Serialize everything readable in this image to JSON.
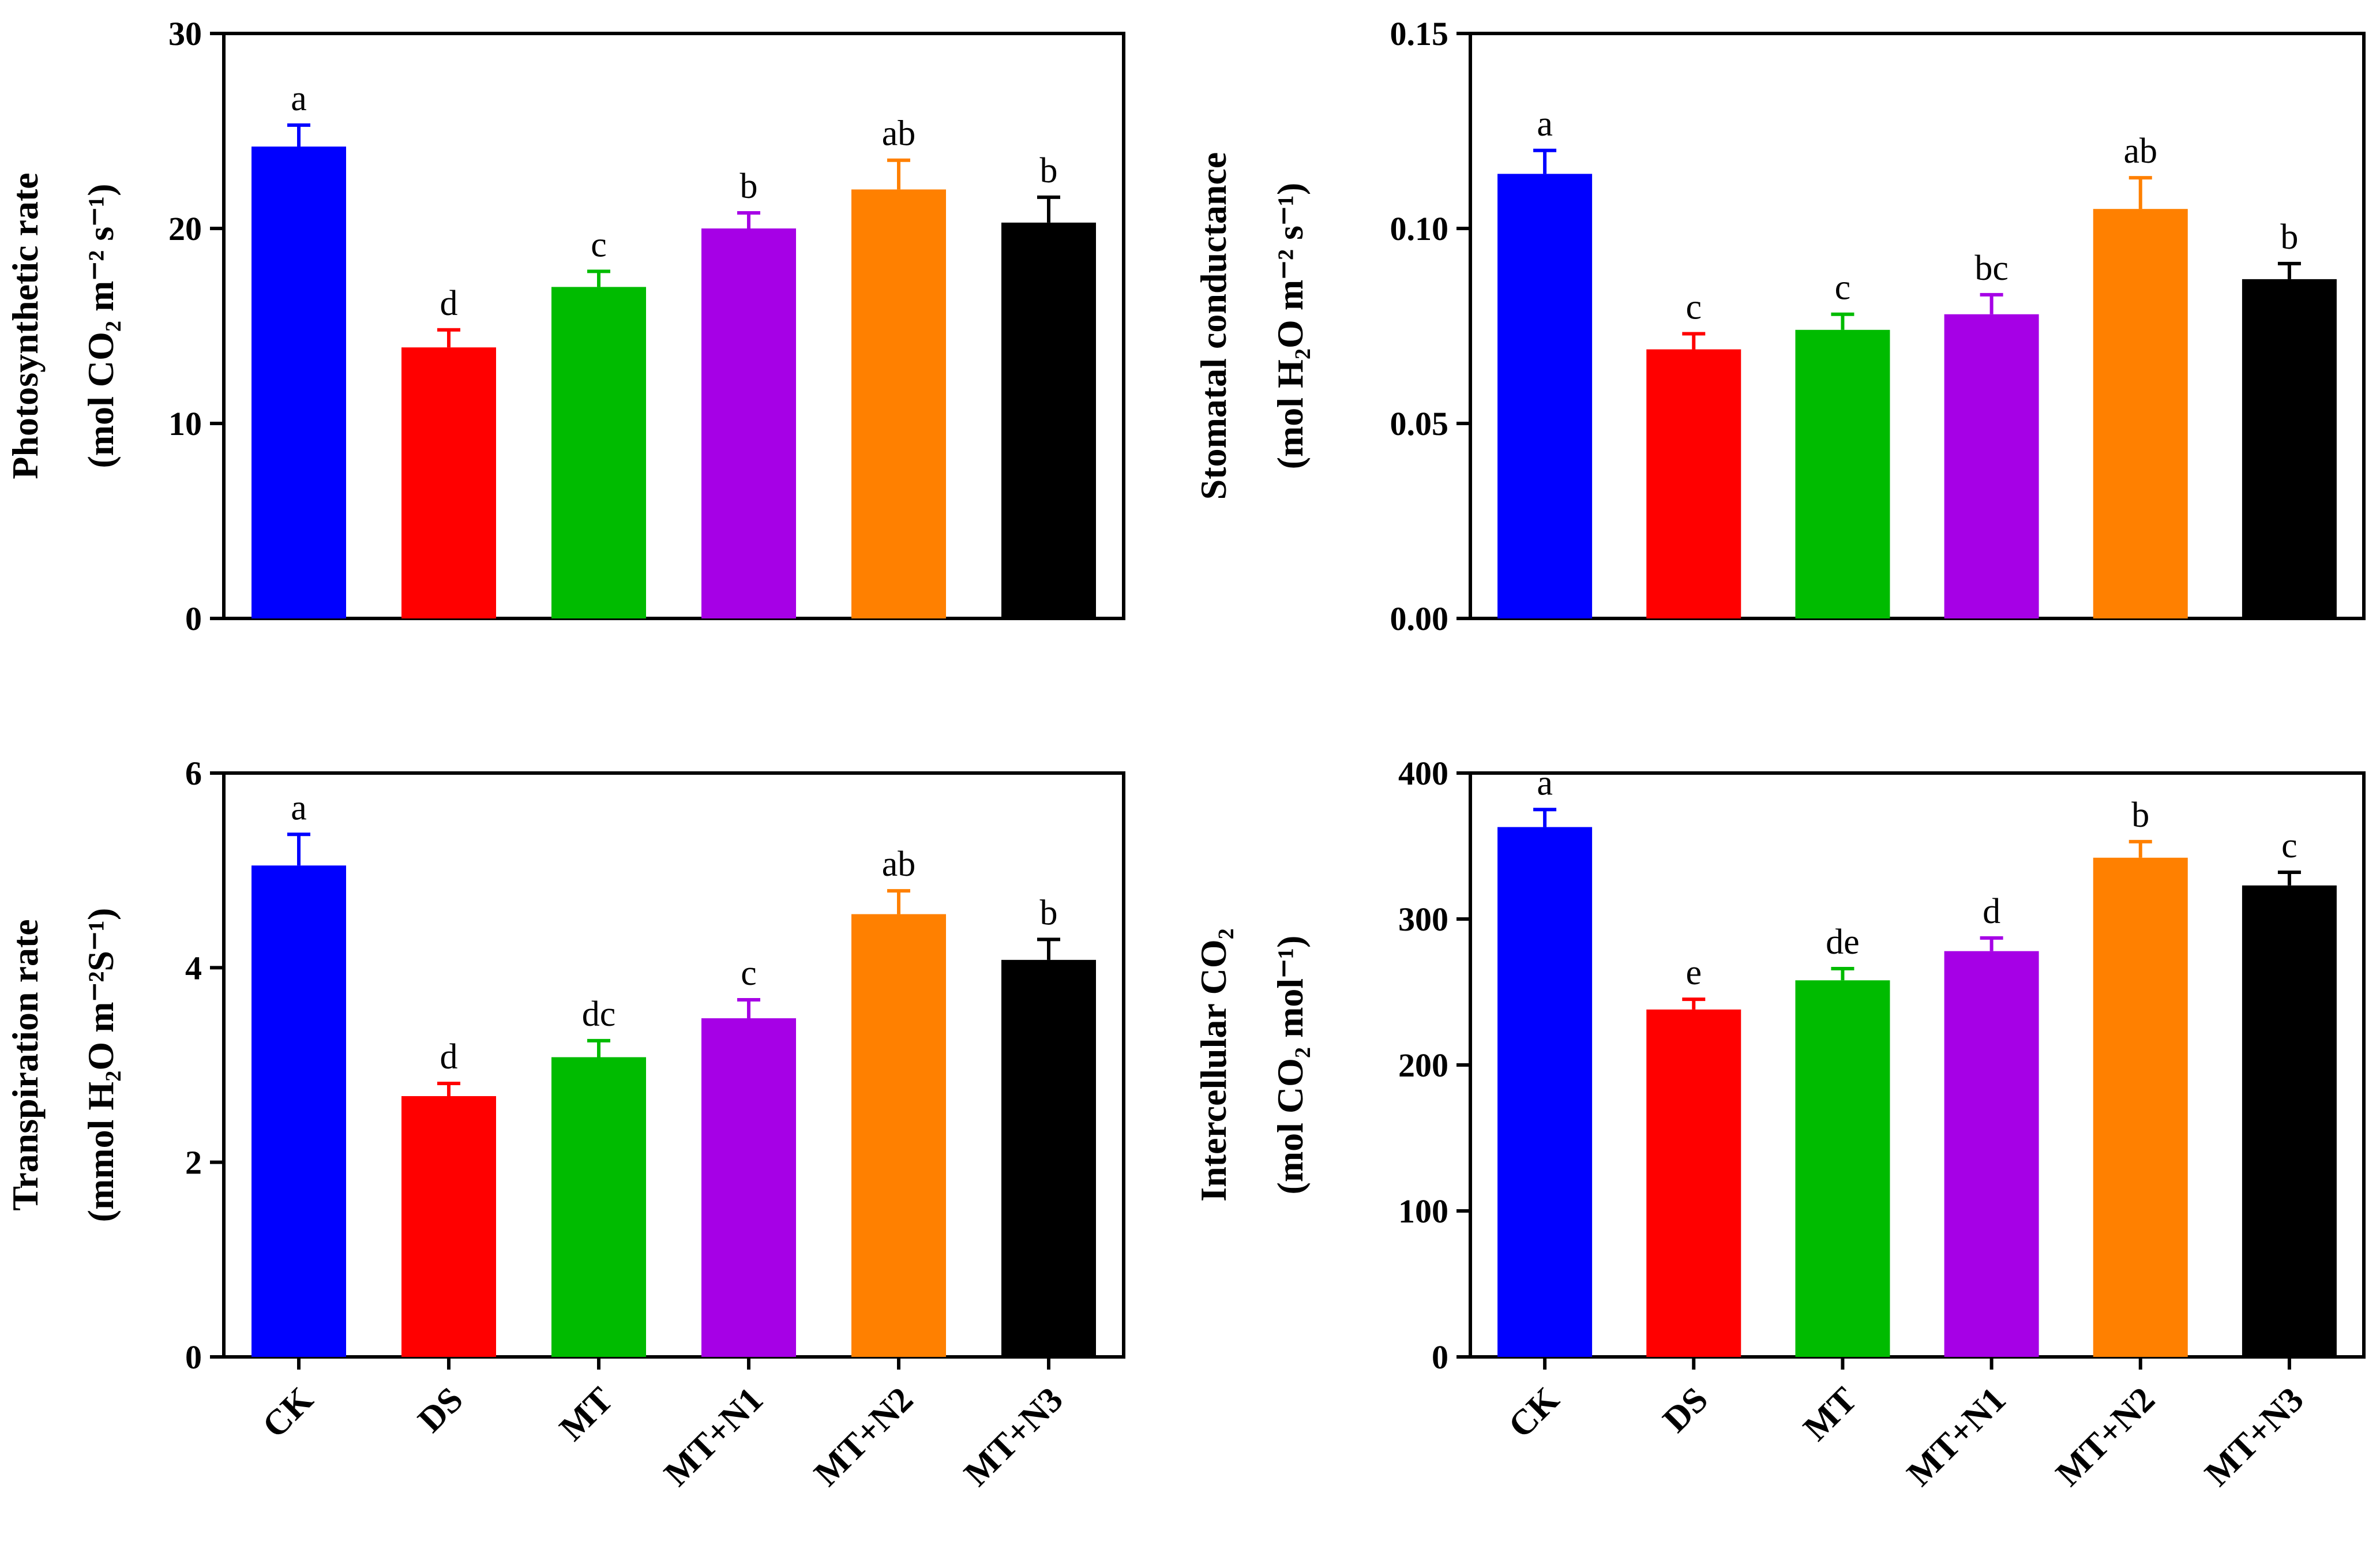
{
  "chart_data": [
    {
      "type": "bar",
      "categories": [
        "CK",
        "DS",
        "MT",
        "MT+N1",
        "MT+N2",
        "MT+N3"
      ],
      "values": [
        24.2,
        13.9,
        17.0,
        20.0,
        22.0,
        20.3
      ],
      "errors": [
        1.1,
        0.9,
        0.8,
        0.8,
        1.5,
        1.3
      ],
      "letters": [
        "a",
        "d",
        "c",
        "b",
        "ab",
        "b"
      ],
      "ylim": [
        0,
        30
      ],
      "yticks": [
        "0",
        "10",
        "20",
        "30"
      ],
      "ylabel_line1": "Photosynthetic rate",
      "ylabel_line2": "(mol CO₂ m⁻² s⁻¹)",
      "show_xlabels": false
    },
    {
      "type": "bar",
      "categories": [
        "CK",
        "DS",
        "MT",
        "MT+N1",
        "MT+N2",
        "MT+N3"
      ],
      "values": [
        0.114,
        0.069,
        0.074,
        0.078,
        0.105,
        0.087
      ],
      "errors": [
        0.006,
        0.004,
        0.004,
        0.005,
        0.008,
        0.004
      ],
      "letters": [
        "a",
        "c",
        "c",
        "bc",
        "ab",
        "b"
      ],
      "ylim": [
        0,
        0.15
      ],
      "yticks": [
        "0.00",
        "0.05",
        "0.10",
        "0.15"
      ],
      "ylabel_line1": "Stomatal conductance",
      "ylabel_line2": "(mol H₂O m⁻² s⁻¹)",
      "show_xlabels": false
    },
    {
      "type": "bar",
      "categories": [
        "CK",
        "DS",
        "MT",
        "MT+N1",
        "MT+N2",
        "MT+N3"
      ],
      "values": [
        5.05,
        2.68,
        3.08,
        3.48,
        4.55,
        4.08
      ],
      "errors": [
        0.32,
        0.13,
        0.17,
        0.19,
        0.24,
        0.21
      ],
      "letters": [
        "a",
        "d",
        "dc",
        "c",
        "ab",
        "b"
      ],
      "ylim": [
        0,
        6
      ],
      "yticks": [
        "0",
        "2",
        "4",
        "6"
      ],
      "ylabel_line1": "Transpiration rate",
      "ylabel_line2": "(mmol H₂O m⁻²S⁻¹)",
      "show_xlabels": true
    },
    {
      "type": "bar",
      "categories": [
        "CK",
        "DS",
        "MT",
        "MT+N1",
        "MT+N2",
        "MT+N3"
      ],
      "values": [
        363,
        238,
        258,
        278,
        342,
        323
      ],
      "errors": [
        12,
        7,
        8,
        9,
        11,
        9
      ],
      "letters": [
        "a",
        "e",
        "de",
        "d",
        "b",
        "c"
      ],
      "ylim": [
        0,
        400
      ],
      "yticks": [
        "0",
        "100",
        "200",
        "300",
        "400"
      ],
      "ylabel_line1": "Intercellular CO₂",
      "ylabel_line2": "(mol CO₂ mol⁻¹)",
      "show_xlabels": true
    }
  ],
  "colors": [
    "#0000ff",
    "#ff0000",
    "#00bb00",
    "#a600e6",
    "#ff8000",
    "#000000"
  ]
}
